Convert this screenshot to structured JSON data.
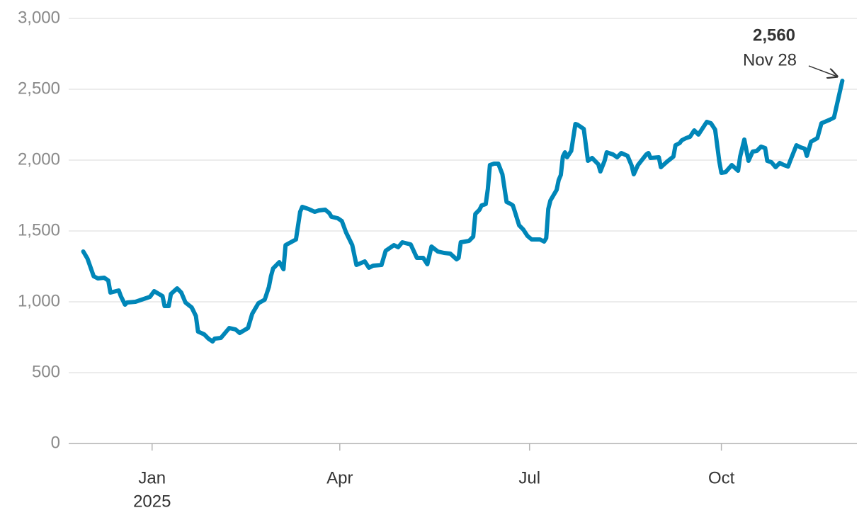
{
  "chart_data": {
    "type": "line",
    "x": [
      "2024-11-29",
      "2024-12-01",
      "2024-12-04",
      "2024-12-06",
      "2024-12-09",
      "2024-12-11",
      "2024-12-12",
      "2024-12-16",
      "2024-12-17",
      "2024-12-19",
      "2024-12-20",
      "2024-12-24",
      "2024-12-31",
      "2025-01-02",
      "2025-01-06",
      "2025-01-07",
      "2025-01-09",
      "2025-01-10",
      "2025-01-13",
      "2025-01-15",
      "2025-01-17",
      "2025-01-20",
      "2025-01-22",
      "2025-01-23",
      "2025-01-26",
      "2025-01-28",
      "2025-01-30",
      "2025-01-31",
      "2025-02-03",
      "2025-02-07",
      "2025-02-10",
      "2025-02-12",
      "2025-02-16",
      "2025-02-18",
      "2025-02-21",
      "2025-02-24",
      "2025-02-26",
      "2025-02-27",
      "2025-02-28",
      "2025-03-03",
      "2025-03-05",
      "2025-03-06",
      "2025-03-11",
      "2025-03-13",
      "2025-03-14",
      "2025-03-17",
      "2025-03-20",
      "2025-03-22",
      "2025-03-25",
      "2025-03-27",
      "2025-03-28",
      "2025-03-31",
      "2025-04-02",
      "2025-04-04",
      "2025-04-07",
      "2025-04-09",
      "2025-04-13",
      "2025-04-15",
      "2025-04-17",
      "2025-04-21",
      "2025-04-23",
      "2025-04-27",
      "2025-04-29",
      "2025-05-01",
      "2025-05-05",
      "2025-05-08",
      "2025-05-11",
      "2025-05-13",
      "2025-05-15",
      "2025-05-18",
      "2025-05-21",
      "2025-05-24",
      "2025-05-27",
      "2025-05-28",
      "2025-05-29",
      "2025-06-02",
      "2025-06-04",
      "2025-06-05",
      "2025-06-07",
      "2025-06-08",
      "2025-06-10",
      "2025-06-11",
      "2025-06-12",
      "2025-06-14",
      "2025-06-16",
      "2025-06-18",
      "2025-06-20",
      "2025-06-22",
      "2025-06-23",
      "2025-06-24",
      "2025-06-26",
      "2025-06-28",
      "2025-06-30",
      "2025-07-02",
      "2025-07-06",
      "2025-07-08",
      "2025-07-09",
      "2025-07-10",
      "2025-07-11",
      "2025-07-14",
      "2025-07-15",
      "2025-07-16",
      "2025-07-17",
      "2025-07-18",
      "2025-07-19",
      "2025-07-21",
      "2025-07-23",
      "2025-07-24",
      "2025-07-27",
      "2025-07-29",
      "2025-07-31",
      "2025-08-03",
      "2025-08-04",
      "2025-08-06",
      "2025-08-07",
      "2025-08-10",
      "2025-08-12",
      "2025-08-14",
      "2025-08-17",
      "2025-08-19",
      "2025-08-20",
      "2025-08-22",
      "2025-08-26",
      "2025-08-27",
      "2025-08-28",
      "2025-09-01",
      "2025-09-02",
      "2025-09-05",
      "2025-09-08",
      "2025-09-09",
      "2025-09-11",
      "2025-09-12",
      "2025-09-14",
      "2025-09-16",
      "2025-09-18",
      "2025-09-20",
      "2025-09-24",
      "2025-09-26",
      "2025-09-28",
      "2025-09-30",
      "2025-10-01",
      "2025-10-03",
      "2025-10-06",
      "2025-10-09",
      "2025-10-10",
      "2025-10-12",
      "2025-10-14",
      "2025-10-16",
      "2025-10-18",
      "2025-10-20",
      "2025-10-22",
      "2025-10-23",
      "2025-10-25",
      "2025-10-27",
      "2025-10-29",
      "2025-10-31",
      "2025-11-02",
      "2025-11-03",
      "2025-11-06",
      "2025-11-08",
      "2025-11-10",
      "2025-11-11",
      "2025-11-13",
      "2025-11-16",
      "2025-11-18",
      "2025-11-22",
      "2025-11-24",
      "2025-11-28"
    ],
    "values": [
      1355,
      1305,
      1180,
      1165,
      1170,
      1150,
      1065,
      1080,
      1040,
      980,
      995,
      1000,
      1035,
      1075,
      1040,
      970,
      970,
      1055,
      1095,
      1065,
      995,
      960,
      900,
      790,
      770,
      740,
      720,
      740,
      745,
      815,
      805,
      780,
      815,
      915,
      990,
      1015,
      1105,
      1180,
      1235,
      1280,
      1230,
      1400,
      1440,
      1635,
      1670,
      1655,
      1635,
      1645,
      1650,
      1625,
      1600,
      1590,
      1570,
      1490,
      1400,
      1260,
      1285,
      1240,
      1255,
      1260,
      1360,
      1400,
      1385,
      1420,
      1405,
      1310,
      1310,
      1265,
      1390,
      1355,
      1345,
      1340,
      1300,
      1310,
      1420,
      1430,
      1460,
      1620,
      1650,
      1680,
      1690,
      1795,
      1965,
      1975,
      1975,
      1900,
      1705,
      1690,
      1680,
      1635,
      1540,
      1510,
      1465,
      1440,
      1440,
      1425,
      1450,
      1655,
      1715,
      1790,
      1860,
      1895,
      2025,
      2055,
      2020,
      2065,
      2255,
      2250,
      2220,
      1995,
      2015,
      1970,
      1920,
      1995,
      2055,
      2040,
      2020,
      2050,
      2030,
      1960,
      1900,
      1965,
      2040,
      2050,
      2015,
      2020,
      1950,
      1990,
      2025,
      2105,
      2120,
      2140,
      2155,
      2165,
      2210,
      2180,
      2270,
      2260,
      2215,
      1990,
      1910,
      1915,
      1965,
      1925,
      2025,
      2145,
      1995,
      2060,
      2065,
      2095,
      2085,
      1995,
      1985,
      1950,
      1980,
      1965,
      1955,
      1995,
      2105,
      2090,
      2080,
      2030,
      2130,
      2155,
      2260,
      2285,
      2300,
      2560
    ],
    "color": "#0086b8",
    "xlim": [
      "2024-11-22",
      "2025-12-05"
    ],
    "xticks": [
      {
        "value": "2025-01-01",
        "label": "Jan",
        "sublabel": "2025"
      },
      {
        "value": "2025-04-01",
        "label": "Apr"
      },
      {
        "value": "2025-07-01",
        "label": "Jul"
      },
      {
        "value": "2025-10-01",
        "label": "Oct"
      }
    ],
    "ylim": [
      0,
      3000
    ],
    "yticks": [
      0,
      500,
      {
        "value": 1000,
        "label": "1,000"
      },
      {
        "value": 1500,
        "label": "1,500"
      },
      {
        "value": 2000,
        "label": "2,000"
      },
      {
        "value": 2500,
        "label": "2,500"
      },
      {
        "value": 3000,
        "label": "3,000"
      }
    ],
    "grid": true,
    "annotation": {
      "text": "2,560",
      "date": "Nov 28"
    }
  }
}
